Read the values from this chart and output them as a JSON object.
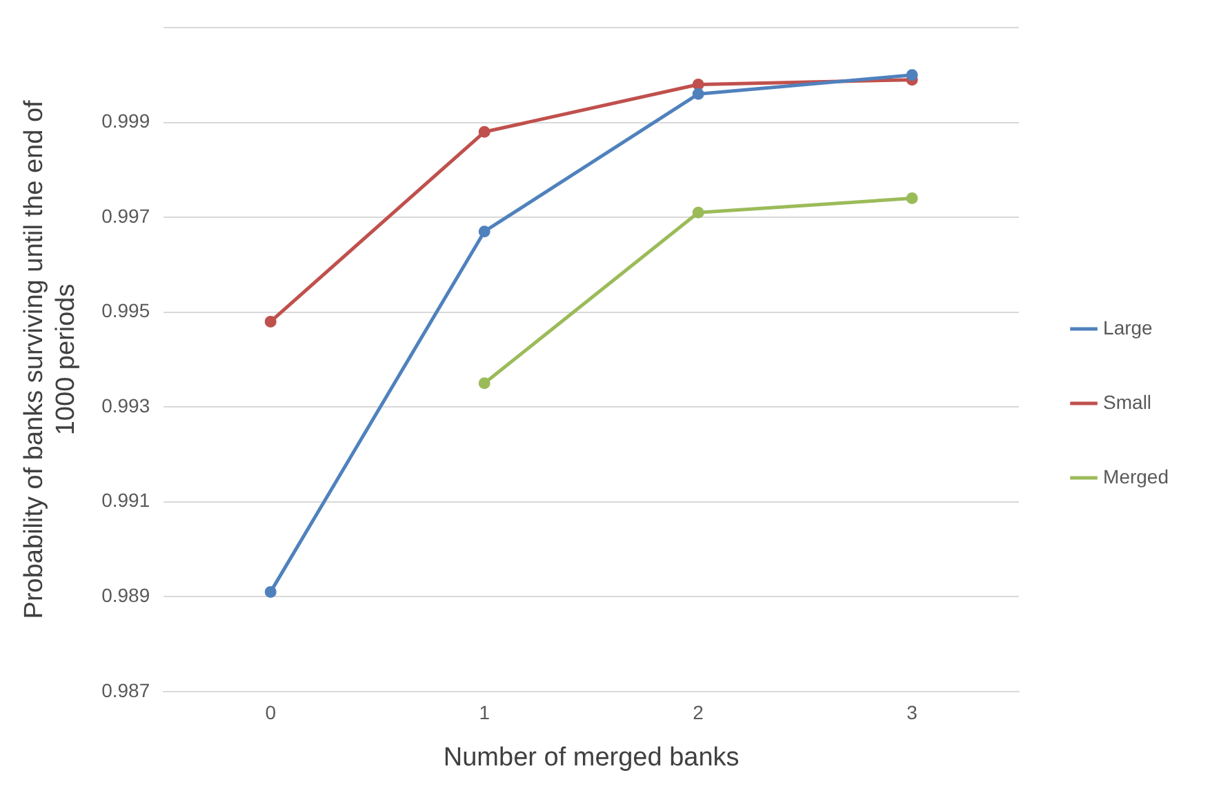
{
  "chart_data": {
    "type": "line",
    "xlabel": "Number of merged banks",
    "ylabel": "Probability of banks surviving until the end of 1000 periods",
    "categories": [
      "0",
      "1",
      "2",
      "3"
    ],
    "series": [
      {
        "name": "Large",
        "color": "#4f81bd",
        "values": [
          0.9891,
          0.9967,
          0.9996,
          1.0
        ]
      },
      {
        "name": "Small",
        "color": "#c0504d",
        "values": [
          0.9948,
          0.9988,
          0.9998,
          0.9999
        ]
      },
      {
        "name": "Merged",
        "color": "#9bbb59",
        "values": [
          null,
          0.9935,
          0.9971,
          0.9974
        ]
      }
    ],
    "ylim": [
      0.987,
      1.001
    ],
    "yticks": [
      0.987,
      0.989,
      0.991,
      0.993,
      0.995,
      0.997,
      0.999,
      {
        "value": 1.001,
        "label": null
      }
    ],
    "grid": "y",
    "legend": "right",
    "marker": "circle",
    "line_style": "solid"
  }
}
